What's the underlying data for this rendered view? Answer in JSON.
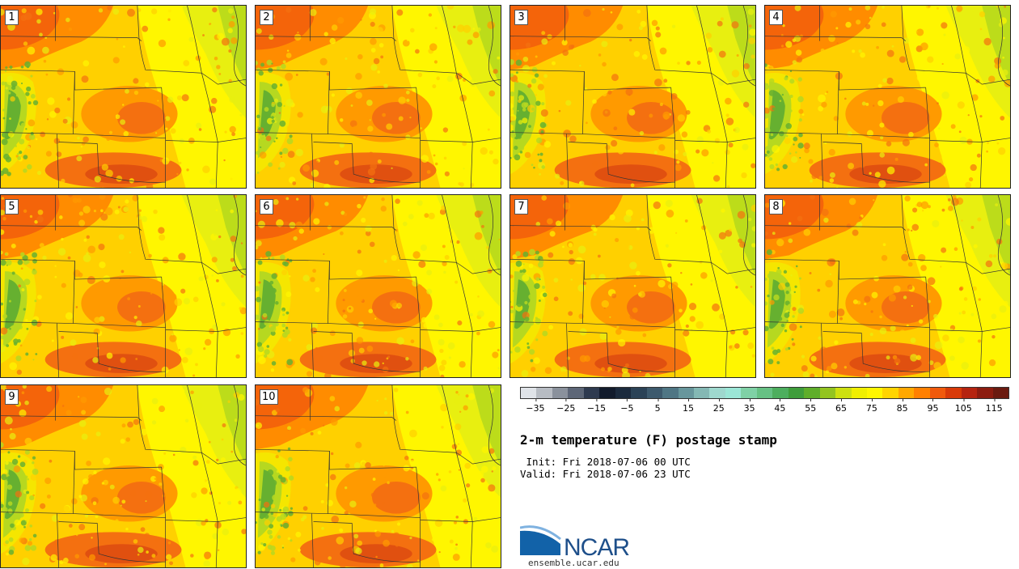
{
  "product": {
    "title": "2-m temperature (F) postage stamp",
    "init_line": " Init: Fri 2018-07-06 00 UTC",
    "valid_line": "Valid: Fri 2018-07-06 23 UTC"
  },
  "members": [
    {
      "label": "1"
    },
    {
      "label": "2"
    },
    {
      "label": "3"
    },
    {
      "label": "4"
    },
    {
      "label": "5"
    },
    {
      "label": "6"
    },
    {
      "label": "7"
    },
    {
      "label": "8"
    },
    {
      "label": "9"
    },
    {
      "label": "10"
    }
  ],
  "colorbar": {
    "colors": [
      "#dfe3e8",
      "#b7bcc3",
      "#8a919c",
      "#5d6677",
      "#2e3a4f",
      "#121b2c",
      "#1b2a3d",
      "#2b4256",
      "#3d5a6d",
      "#4f7684",
      "#67969c",
      "#84b8b4",
      "#9ed8ce",
      "#9be6d6",
      "#7fd1a6",
      "#66c184",
      "#4dae5e",
      "#3f9d3b",
      "#5fae2a",
      "#93c420",
      "#cde010",
      "#f0ef00",
      "#fff600",
      "#ffd400",
      "#ffa800",
      "#ff8000",
      "#f05a0c",
      "#d83a08",
      "#b52410",
      "#8c1c10",
      "#6a1a10"
    ],
    "tick_labels": [
      "−35",
      "−25",
      "−15",
      "−5",
      "5",
      "15",
      "25",
      "35",
      "45",
      "55",
      "65",
      "75",
      "85",
      "95",
      "105",
      "115"
    ],
    "tick_values": [
      -35,
      -25,
      -15,
      -5,
      5,
      15,
      25,
      35,
      45,
      55,
      65,
      75,
      85,
      95,
      105,
      115
    ],
    "range": [
      -40,
      120
    ]
  },
  "logo": {
    "text": "NCAR",
    "url_text": "ensemble.ucar.edu",
    "colors": {
      "blue": "#1262a8",
      "text": "#1e4f8a",
      "swoosh": "#7fb2e0"
    }
  }
}
